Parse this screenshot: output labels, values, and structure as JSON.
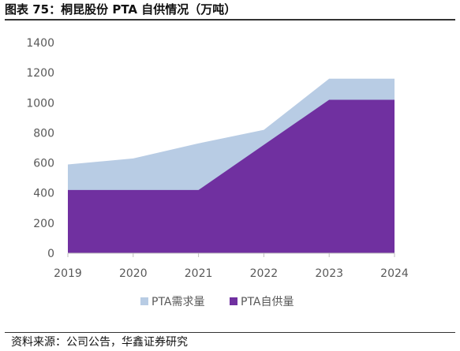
{
  "header": {
    "title": "图表 75：桐昆股份 PTA 自供情况（万吨）"
  },
  "footer": {
    "source": "资料来源：公司公告，华鑫证券研究"
  },
  "colors": {
    "demand": "#B8CCE4",
    "self_supply": "#7030A0",
    "axis": "#BFBFBF",
    "tick_text": "#595959"
  },
  "chart_data": {
    "type": "area",
    "title": "",
    "xlabel": "",
    "ylabel": "",
    "categories": [
      "2019",
      "2020",
      "2021",
      "2022",
      "2023",
      "2024"
    ],
    "ylim": [
      0,
      1400
    ],
    "yticks": [
      0,
      200,
      400,
      600,
      800,
      1000,
      1200,
      1400
    ],
    "grid": false,
    "legend_position": "bottom",
    "series": [
      {
        "name": "PTA需求量",
        "color": "#B8CCE4",
        "values": [
          590,
          630,
          730,
          820,
          1160,
          1160
        ]
      },
      {
        "name": "PTA自供量",
        "color": "#7030A0",
        "values": [
          420,
          420,
          420,
          720,
          1020,
          1020
        ]
      }
    ]
  }
}
